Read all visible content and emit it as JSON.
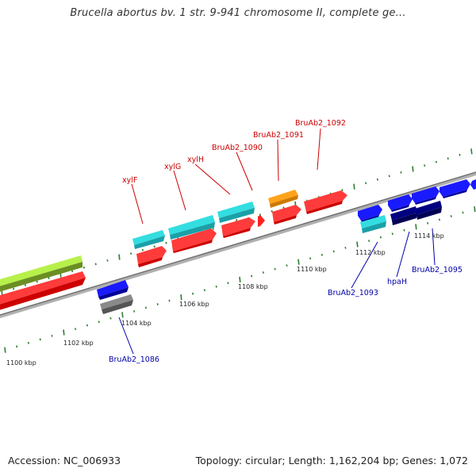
{
  "title": "Brucella abortus bv. 1 str. 9-941 chromosome II, complete ge...",
  "footer": {
    "accession": "Accession: NC_006933",
    "stats": "Topology: circular; Length: 1,162,204 bp; Genes: 1,072"
  },
  "colors": {
    "backbone": "#8c8c8c",
    "tick": "#2e7d32",
    "label_forward": "#cc0000",
    "label_reverse": "#0000aa",
    "red": "#ff1a1a",
    "cyan": "#22c8d0",
    "blue": "#1a1aff",
    "navy": "#000080",
    "orange": "#ff9900",
    "lime": "#99e633",
    "olive": "#6b8e23",
    "gray": "#777777"
  },
  "tick_labels": [
    {
      "text": "1100 kbp",
      "kbp": 1100
    },
    {
      "text": "1102 kbp",
      "kbp": 1102
    },
    {
      "text": "1104 kbp",
      "kbp": 1104
    },
    {
      "text": "1106 kbp",
      "kbp": 1106
    },
    {
      "text": "1108 kbp",
      "kbp": 1108
    },
    {
      "text": "1110 kbp",
      "kbp": 1110
    },
    {
      "text": "1112 kbp",
      "kbp": 1112
    },
    {
      "text": "1114 kbp",
      "kbp": 1114
    }
  ],
  "gene_labels_forward": [
    "xylF",
    "xylG",
    "xylH",
    "BruAb2_1090",
    "BruAb2_1091",
    "BruAb2_1092"
  ],
  "gene_labels_reverse": [
    "BruAb2_1086",
    "BruAb2_1093",
    "hpaH",
    "BruAb2_1095"
  ]
}
